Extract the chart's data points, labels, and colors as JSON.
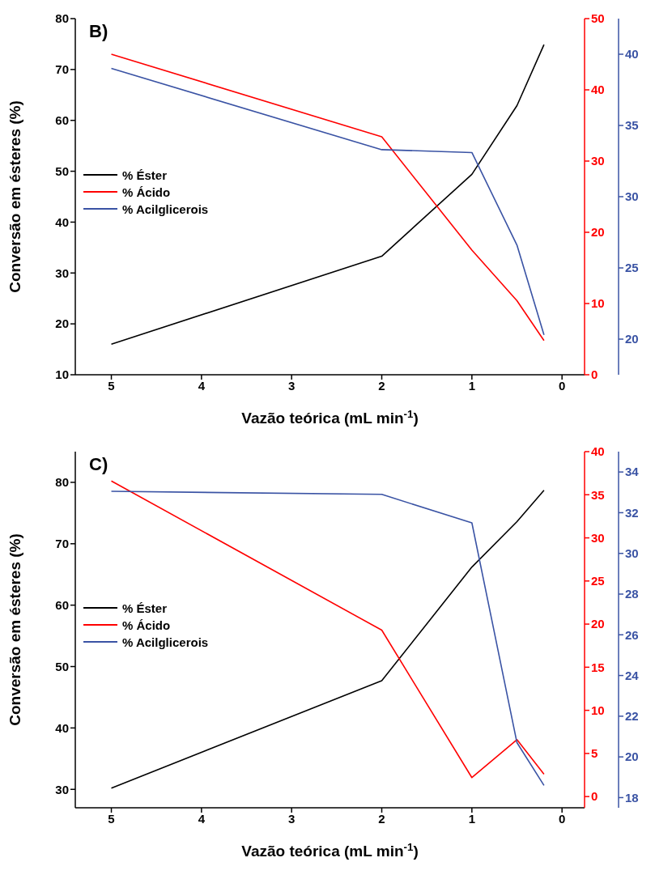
{
  "chart_data": [
    {
      "type": "line",
      "annotations": [
        "B)"
      ],
      "xlabel": "Vazão teórica (mL min$^{-1}$)",
      "ylabel": "Conversão em ésteres (%)",
      "x": [
        5,
        2,
        1,
        0.5,
        0.2
      ],
      "xlim": [
        5.4,
        -0.25
      ],
      "xticks": [
        5,
        4,
        3,
        2,
        1,
        0
      ],
      "ylim": [
        10,
        80
      ],
      "yticks": [
        10,
        20,
        30,
        40,
        50,
        60,
        70,
        80
      ],
      "y2lim": [
        0,
        50
      ],
      "y2ticks": [
        0,
        10,
        20,
        30,
        40,
        50
      ],
      "y3lim": [
        17.5,
        42.5
      ],
      "y3ticks": [
        20,
        25,
        30,
        35,
        40
      ],
      "legend": "left",
      "grid": false,
      "marker": "none",
      "series": [
        {
          "name": "% Éster",
          "color": "#000000",
          "values": [
            16,
            33.3,
            49.4,
            62.9,
            74.9
          ]
        },
        {
          "name": "% Ácido",
          "color": "#ff0000",
          "axis": "y2",
          "values": [
            45,
            33.4,
            17.5,
            10.4,
            4.8
          ]
        },
        {
          "name": "% Acilglicerois",
          "color": "#3a53a4",
          "axis": "y3",
          "values": [
            39,
            33.3,
            33.1,
            26.6,
            20.3
          ]
        }
      ]
    },
    {
      "type": "line",
      "annotations": [
        "C)"
      ],
      "xlabel": "Vazão teórica (mL min$^{-1}$)",
      "ylabel": "Conversão em ésteres (%)",
      "x": [
        5,
        2,
        1,
        0.5,
        0.2
      ],
      "xlim": [
        5.4,
        -0.25
      ],
      "xticks": [
        5,
        4,
        3,
        2,
        1,
        0
      ],
      "ylim": [
        27,
        85
      ],
      "yticks": [
        30,
        40,
        50,
        60,
        70,
        80
      ],
      "y2lim": [
        -1.3,
        40
      ],
      "y2ticks": [
        0,
        5,
        10,
        15,
        20,
        25,
        30,
        35,
        40
      ],
      "y3lim": [
        17.5,
        35
      ],
      "y3ticks": [
        18,
        20,
        22,
        24,
        26,
        28,
        30,
        32,
        34
      ],
      "legend": "left",
      "grid": false,
      "marker": "none",
      "series": [
        {
          "name": "% Éster",
          "color": "#000000",
          "values": [
            30.2,
            47.7,
            66.2,
            73.6,
            78.7
          ]
        },
        {
          "name": "% Ácido",
          "color": "#ff0000",
          "axis": "y2",
          "values": [
            36.6,
            19.3,
            2.2,
            6.6,
            2.6
          ]
        },
        {
          "name": "% Acilglicerois",
          "color": "#3a53a4",
          "axis": "y3",
          "values": [
            33.05,
            32.9,
            31.5,
            20.7,
            18.6
          ]
        }
      ]
    }
  ]
}
